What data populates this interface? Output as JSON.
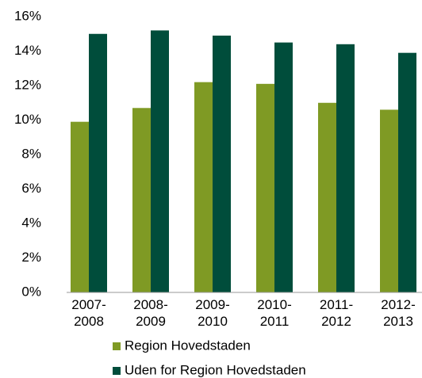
{
  "chart_data": {
    "type": "bar",
    "categories": [
      "2007-2008",
      "2008-2009",
      "2009-2010",
      "2010-2011",
      "2011-2012",
      "2012-2013"
    ],
    "series": [
      {
        "name": "Region Hovedstaden",
        "color": "#7f9a24",
        "values": [
          9.9,
          10.7,
          12.2,
          12.1,
          11.0,
          10.6
        ]
      },
      {
        "name": "Uden for Region Hovedstaden",
        "color": "#004d3b",
        "values": [
          15.0,
          15.2,
          14.9,
          14.5,
          14.4,
          13.9
        ]
      }
    ],
    "ylim": [
      0,
      16
    ],
    "yticks": [
      {
        "value": 0,
        "label": "0%"
      },
      {
        "value": 2,
        "label": "2%"
      },
      {
        "value": 4,
        "label": "4%"
      },
      {
        "value": 6,
        "label": "6%"
      },
      {
        "value": 8,
        "label": "8%"
      },
      {
        "value": 10,
        "label": "10%"
      },
      {
        "value": 12,
        "label": "12%"
      },
      {
        "value": 14,
        "label": "14%"
      },
      {
        "value": 16,
        "label": "16%"
      }
    ],
    "grid": false,
    "legend": "bottom"
  }
}
